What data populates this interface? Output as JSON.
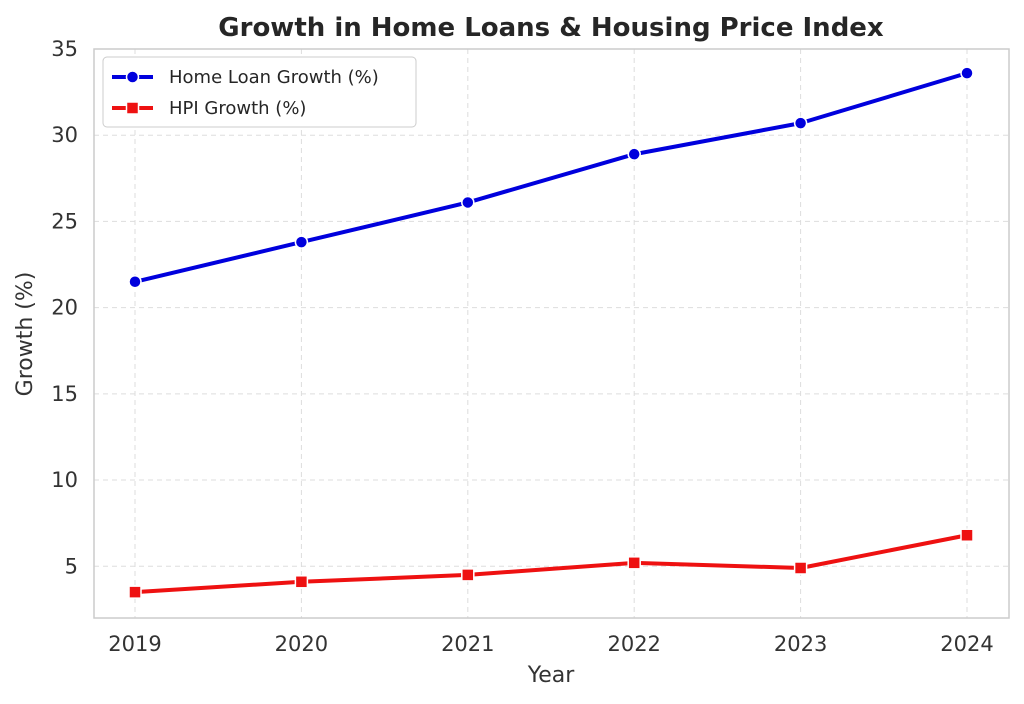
{
  "chart_data": {
    "type": "line",
    "title": "Growth in Home Loans & Housing Price Index",
    "xlabel": "Year",
    "ylabel": "Growth (%)",
    "x": [
      "2019",
      "2020",
      "2021",
      "2022",
      "2023",
      "2024"
    ],
    "ylim": [
      2,
      35
    ],
    "yticks": [
      "5",
      "10",
      "15",
      "20",
      "25",
      "30",
      "35"
    ],
    "grid": true,
    "legend_position": "top-left",
    "series": [
      {
        "name": "Home Loan Growth (%)",
        "values": [
          21.5,
          23.8,
          26.1,
          28.9,
          30.7,
          33.6
        ],
        "color": "#0000dd",
        "marker": "circle"
      },
      {
        "name": "HPI Growth (%)",
        "values": [
          3.5,
          4.1,
          4.5,
          5.2,
          4.9,
          6.8
        ],
        "color": "#ee1111",
        "marker": "square"
      }
    ]
  }
}
